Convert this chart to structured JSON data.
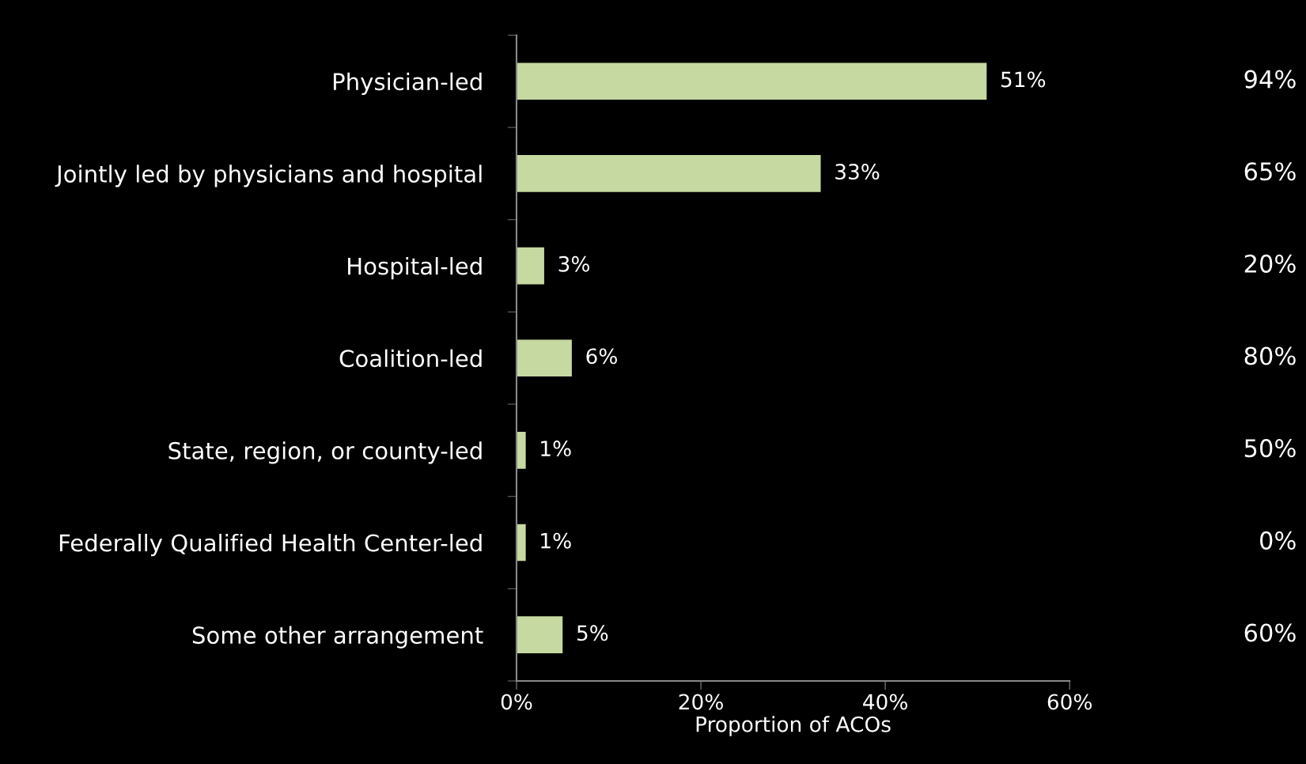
{
  "chart_data": {
    "type": "bar",
    "orientation": "horizontal",
    "xlabel": "Proportion of ACOs",
    "categories": [
      "Physician-led",
      "Jointly led by physicians and hospital",
      "Hospital-led",
      "Coalition-led",
      "State, region, or county-led",
      "Federally Qualified Health Center-led",
      "Some other arrangement"
    ],
    "values": [
      51,
      33,
      3,
      6,
      1,
      1,
      5
    ],
    "value_labels": [
      "51%",
      "33%",
      "3%",
      "6%",
      "1%",
      "1%",
      "5%"
    ],
    "color": "#c6d9a0",
    "xlim": [
      0,
      60
    ],
    "xticks": [
      {
        "value": 0,
        "label": "0%"
      },
      {
        "value": 20,
        "label": "20%"
      },
      {
        "value": 40,
        "label": "40%"
      },
      {
        "value": 60,
        "label": "60%"
      }
    ],
    "annotations": [
      "94%",
      "65%",
      "20%",
      "80%",
      "50%",
      "0%",
      "60%"
    ],
    "grid": false
  }
}
